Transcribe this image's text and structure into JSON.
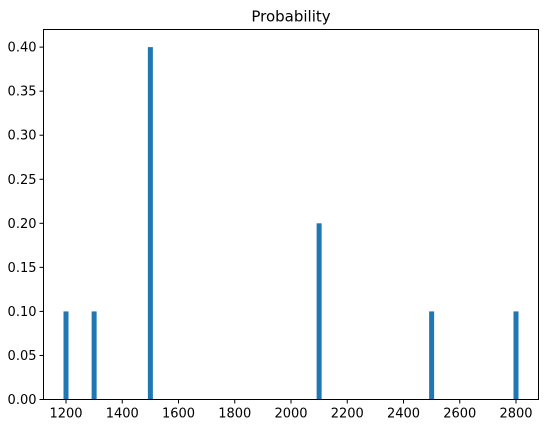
{
  "chart_data": {
    "type": "bar",
    "title": "Probability",
    "xlabel": "",
    "ylabel": "",
    "x": [
      1200,
      1300,
      1500,
      2100,
      2500,
      2800
    ],
    "values": [
      0.1,
      0.1,
      0.4,
      0.2,
      0.1,
      0.1
    ],
    "xlim": [
      1120,
      2880
    ],
    "ylim": [
      0,
      0.42
    ],
    "xticks": [
      1200,
      1400,
      1600,
      1800,
      2000,
      2200,
      2400,
      2600,
      2800
    ],
    "xtick_labels": [
      "1200",
      "1400",
      "1600",
      "1800",
      "2000",
      "2200",
      "2400",
      "2600",
      "2800"
    ],
    "yticks": [
      0,
      0.05,
      0.1,
      0.15,
      0.2,
      0.25,
      0.3,
      0.35,
      0.4
    ],
    "ytick_labels": [
      "0.00",
      "0.05",
      "0.10",
      "0.15",
      "0.20",
      "0.25",
      "0.30",
      "0.35",
      "0.40"
    ],
    "bar_color": "#1f77b4",
    "grid": false,
    "legend": "none"
  }
}
